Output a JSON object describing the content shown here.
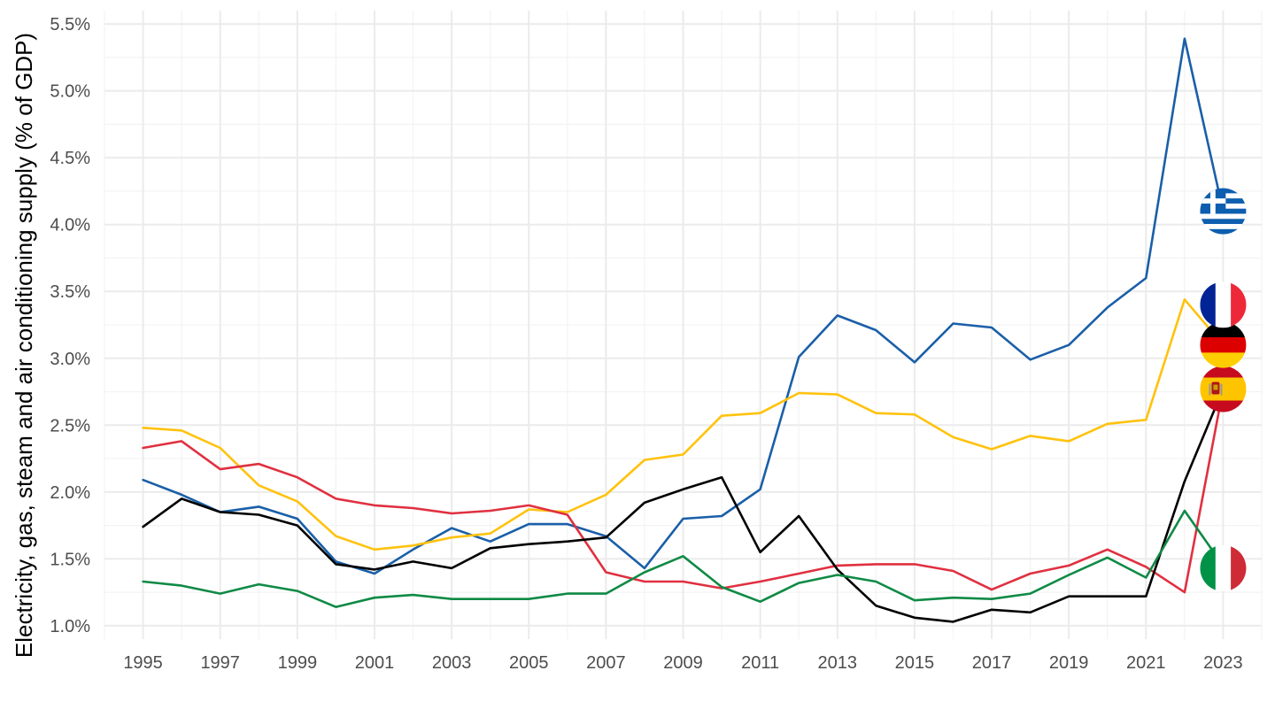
{
  "chart_data": {
    "type": "line",
    "title": "",
    "xlabel": "",
    "ylabel": "Electricity, gas, steam and air conditioning supply (% of GDP)",
    "xlim": [
      1994,
      2024
    ],
    "ylim": [
      0.9,
      5.6
    ],
    "x_ticks": [
      1995,
      1997,
      1999,
      2001,
      2003,
      2005,
      2007,
      2009,
      2011,
      2013,
      2015,
      2017,
      2019,
      2021,
      2023
    ],
    "y_ticks": [
      1.0,
      1.5,
      2.0,
      2.5,
      3.0,
      3.5,
      4.0,
      4.5,
      5.0,
      5.5
    ],
    "y_tick_labels": [
      "1.0%",
      "1.5%",
      "2.0%",
      "2.5%",
      "3.0%",
      "3.5%",
      "4.0%",
      "4.5%",
      "5.0%",
      "5.5%"
    ],
    "grid": true,
    "legend": "flags at line ends",
    "x": [
      1995,
      1996,
      1997,
      1998,
      1999,
      2000,
      2001,
      2002,
      2003,
      2004,
      2005,
      2006,
      2007,
      2008,
      2009,
      2010,
      2011,
      2012,
      2013,
      2014,
      2015,
      2016,
      2017,
      2018,
      2019,
      2020,
      2021,
      2022,
      2023
    ],
    "series": [
      {
        "id": "greece",
        "color": "#1a5fa8",
        "flag": "greece-flag-icon",
        "values": [
          2.09,
          1.98,
          1.85,
          1.89,
          1.8,
          1.48,
          1.39,
          1.57,
          1.73,
          1.63,
          1.76,
          1.76,
          1.67,
          1.43,
          1.8,
          1.82,
          2.02,
          3.01,
          3.32,
          3.21,
          2.97,
          3.26,
          3.23,
          2.99,
          3.1,
          3.38,
          3.6,
          5.39,
          4.1
        ]
      },
      {
        "id": "france",
        "color": "#ffc20e",
        "flag": "france-flag-icon",
        "values": [
          2.48,
          2.46,
          2.33,
          2.05,
          1.93,
          1.67,
          1.57,
          1.6,
          1.66,
          1.69,
          1.87,
          1.85,
          1.98,
          2.24,
          2.28,
          2.57,
          2.59,
          2.74,
          2.73,
          2.59,
          2.58,
          2.41,
          2.32,
          2.42,
          2.38,
          2.51,
          2.54,
          3.44,
          3.1
        ]
      },
      {
        "id": "spain",
        "color": "#e03040",
        "flag": "spain-flag-icon",
        "values": [
          2.33,
          2.38,
          2.17,
          2.21,
          2.11,
          1.95,
          1.9,
          1.88,
          1.84,
          1.86,
          1.9,
          1.83,
          1.4,
          1.33,
          1.33,
          1.28,
          1.33,
          1.39,
          1.45,
          1.46,
          1.46,
          1.41,
          1.27,
          1.39,
          1.45,
          1.57,
          1.44,
          1.25,
          2.77
        ]
      },
      {
        "id": "germany",
        "color": "#000000",
        "flag": "germany-flag-icon",
        "values": [
          1.74,
          1.95,
          1.85,
          1.83,
          1.75,
          1.46,
          1.42,
          1.48,
          1.43,
          1.58,
          1.61,
          1.63,
          1.66,
          1.92,
          2.02,
          2.11,
          1.55,
          1.82,
          1.42,
          1.15,
          1.06,
          1.03,
          1.12,
          1.1,
          1.22,
          1.22,
          1.22,
          2.08,
          2.77
        ]
      },
      {
        "id": "italy",
        "color": "#0f8a45",
        "flag": "italy-flag-icon",
        "values": [
          1.33,
          1.3,
          1.24,
          1.31,
          1.26,
          1.14,
          1.21,
          1.23,
          1.2,
          1.2,
          1.2,
          1.24,
          1.24,
          1.4,
          1.52,
          1.29,
          1.18,
          1.32,
          1.38,
          1.33,
          1.19,
          1.21,
          1.2,
          1.24,
          1.38,
          1.51,
          1.36,
          1.86,
          1.45
        ]
      }
    ],
    "flag_markers": [
      {
        "series": "greece",
        "icon": "greece-flag-icon",
        "x": 2023,
        "y": 4.1
      },
      {
        "series": "france",
        "icon": "france-flag-icon",
        "x": 2023,
        "y": 3.4
      },
      {
        "series": "germany",
        "icon": "germany-flag-icon",
        "x": 2023,
        "y": 3.1
      },
      {
        "series": "spain",
        "icon": "spain-flag-icon",
        "x": 2023,
        "y": 2.77
      },
      {
        "series": "italy",
        "icon": "italy-flag-icon",
        "x": 2023,
        "y": 1.43
      }
    ]
  }
}
